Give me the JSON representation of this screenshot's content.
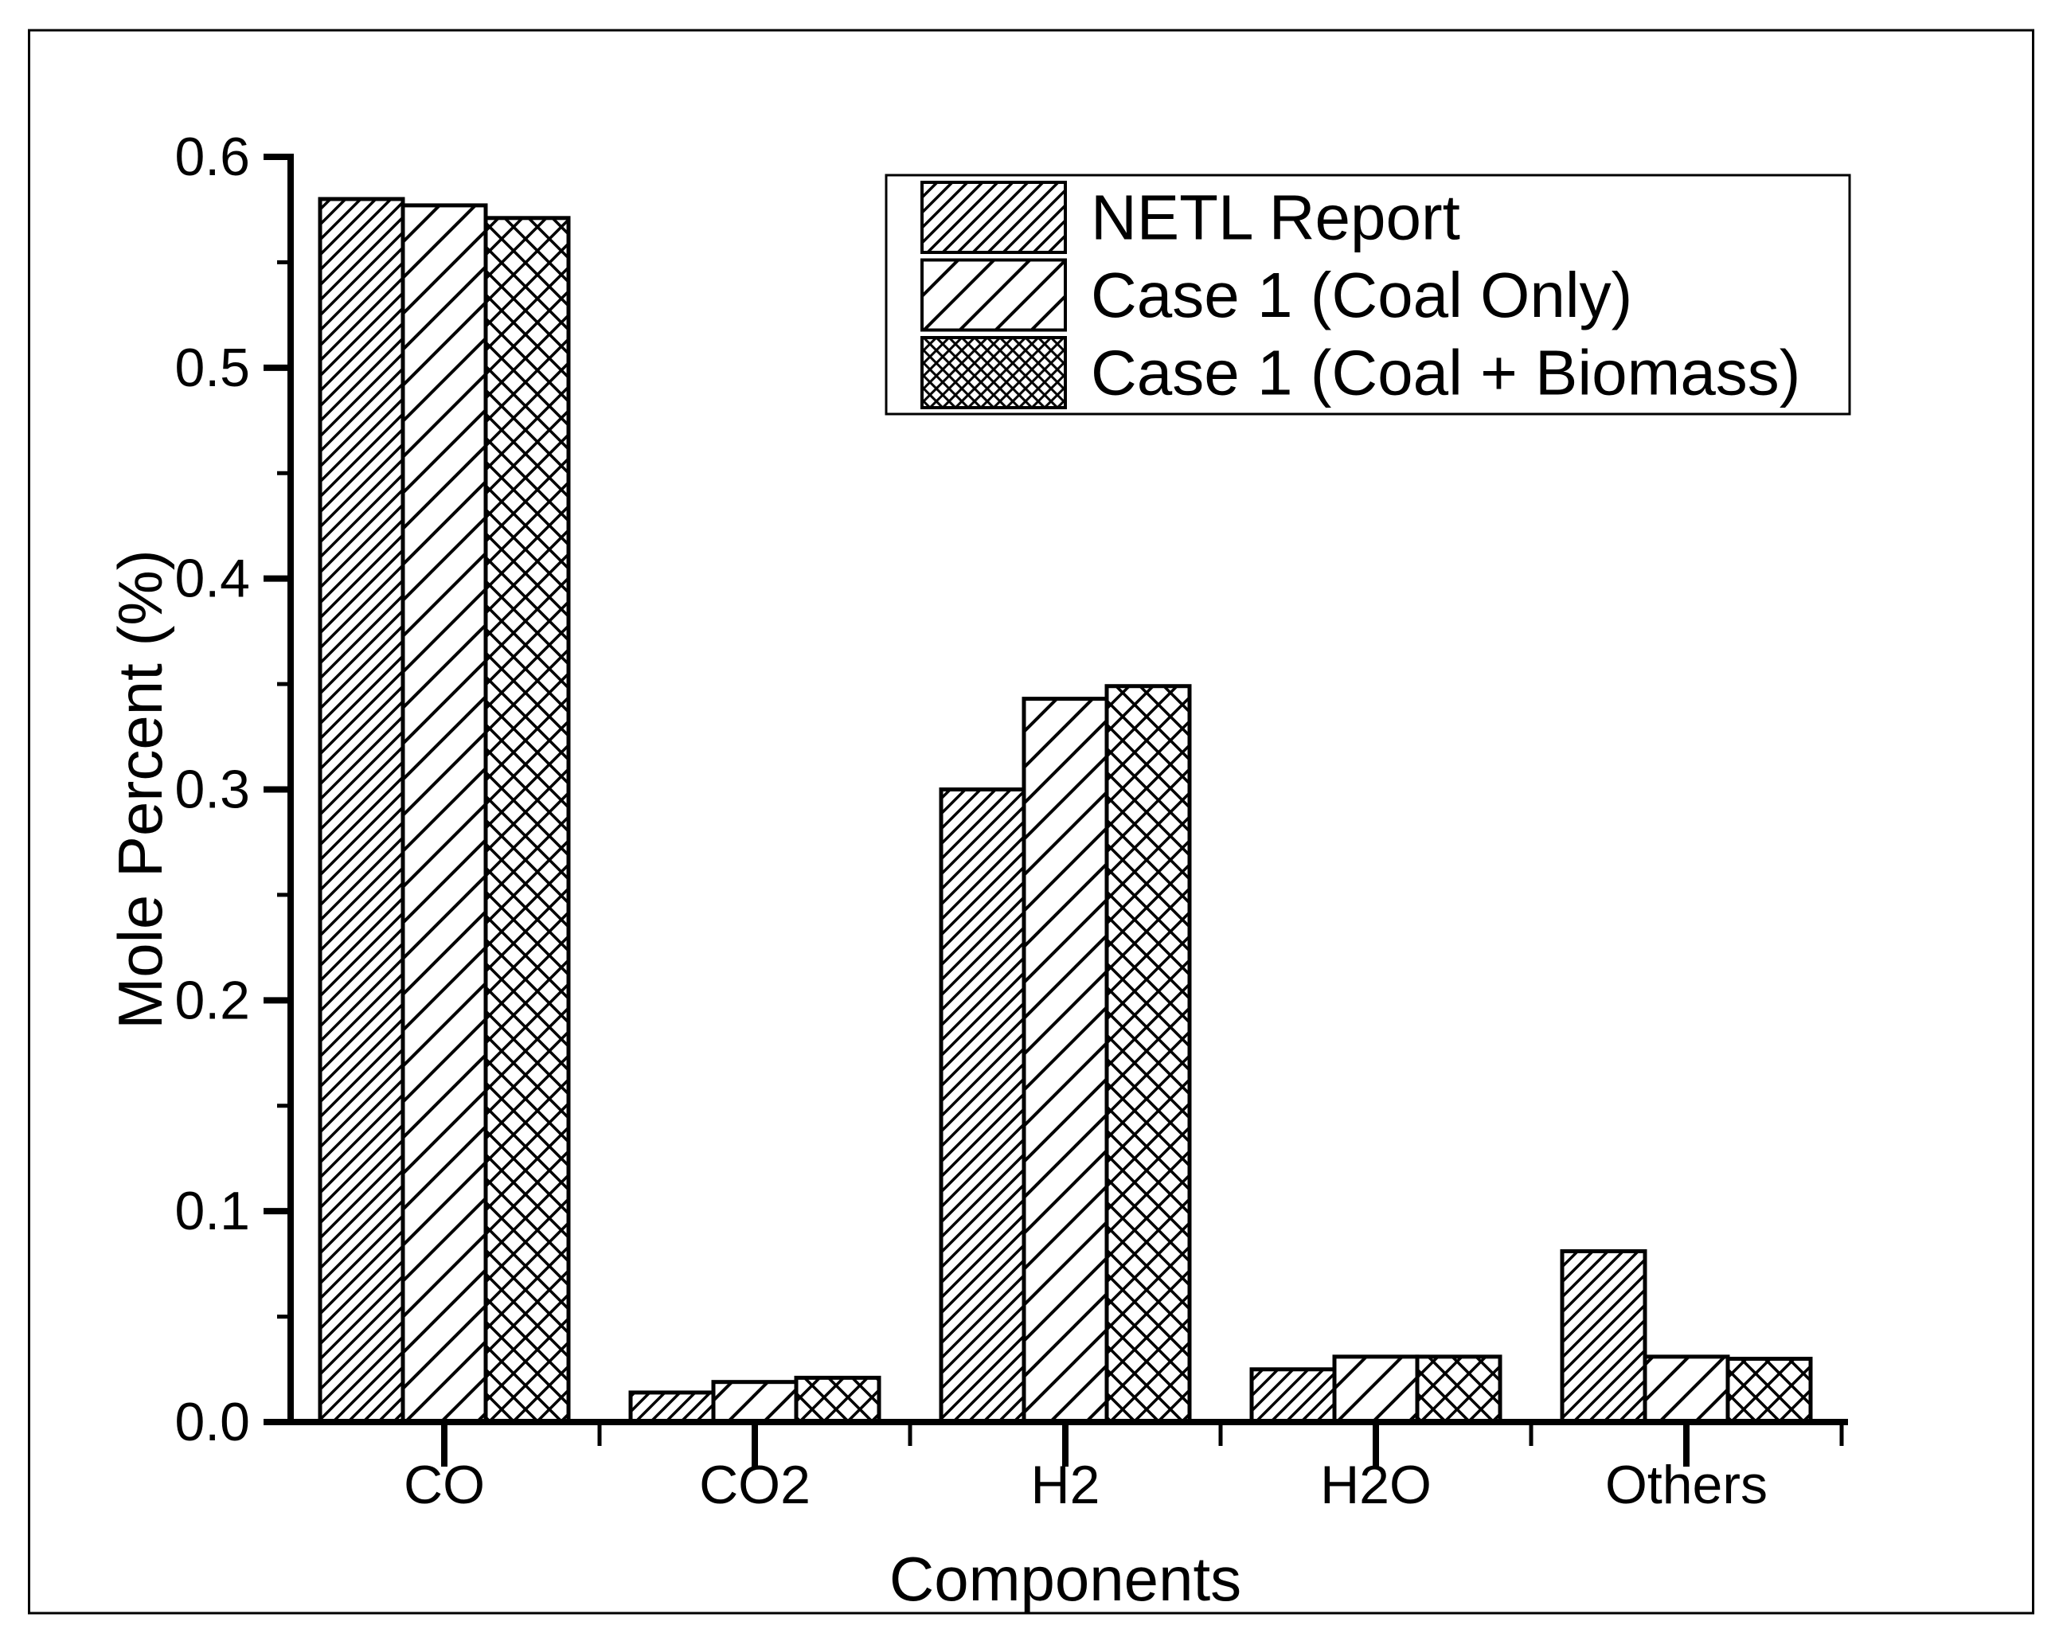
{
  "figure": {
    "background": "#ffffff",
    "ink": "#000000"
  },
  "chart_data": {
    "type": "bar",
    "title": "",
    "xlabel": "Components",
    "ylabel": "Mole Percent (%)",
    "categories": [
      "CO",
      "CO2",
      "H2",
      "H2O",
      "Others"
    ],
    "series": [
      {
        "name": "NETL Report",
        "hatch": "dense-diagonal",
        "values": [
          0.58,
          0.014,
          0.3,
          0.025,
          0.081
        ]
      },
      {
        "name": "Case 1 (Coal Only)",
        "hatch": "sparse-diagonal",
        "values": [
          0.577,
          0.019,
          0.343,
          0.031,
          0.031
        ]
      },
      {
        "name": "Case 1 (Coal + Biomass)",
        "hatch": "crosshatch",
        "values": [
          0.571,
          0.021,
          0.349,
          0.031,
          0.03
        ]
      }
    ],
    "ylim": [
      0.0,
      0.6
    ],
    "ytick_step": 0.1,
    "ytick_minor_step": 0.05,
    "ytick_labels": [
      "0.0",
      "0.1",
      "0.2",
      "0.3",
      "0.4",
      "0.5",
      "0.6"
    ],
    "grid": false,
    "legend_position": "top-right",
    "bar_fill": "#ffffff",
    "bar_edge": "#000000"
  }
}
